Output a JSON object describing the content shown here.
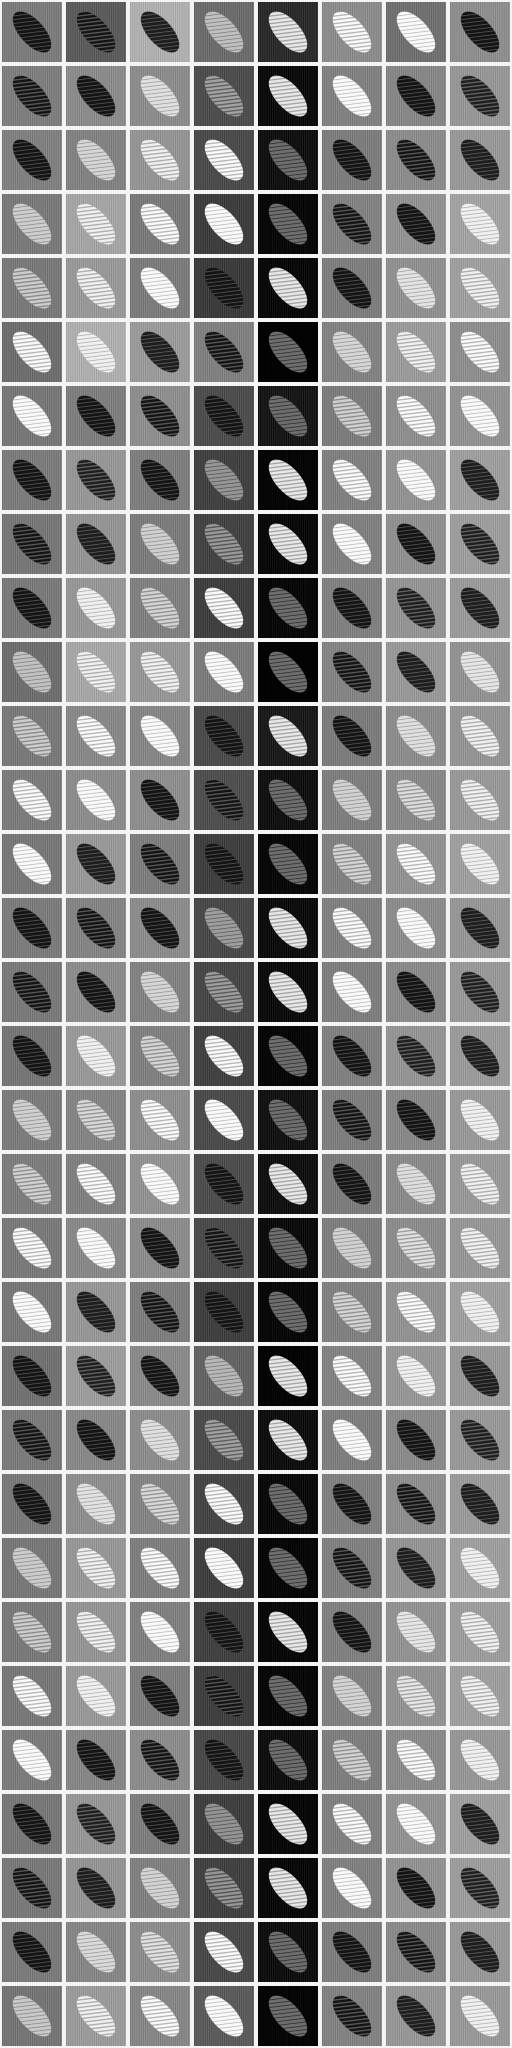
{
  "figure": {
    "columns": 8,
    "rows": 32,
    "tile_shape": "diagonal-ellipse",
    "tones": [
      [
        "#8a8a8a",
        "#6a6a6a",
        "#bdbdbd",
        "#7a7a7a",
        "#3a3a3a",
        "#9a9a9a",
        "#7e7e7e",
        "#9c9c9c"
      ],
      [
        "#8c8c8c",
        "#999999",
        "#9a9a9a",
        "#5c5c5c",
        "#1a1a1a",
        "#8f8f8f",
        "#959595",
        "#a4a4a4"
      ],
      [
        "#8e8e8e",
        "#909090",
        "#a2a2a2",
        "#5a5a5a",
        "#202020",
        "#8b8b8b",
        "#9a9a9a",
        "#a6a6a6"
      ],
      [
        "#888888",
        "#b2b2b2",
        "#888888",
        "#4c4c4c",
        "#121212",
        "#909090",
        "#a0a0a0",
        "#b0b0b0"
      ],
      [
        "#878787",
        "#a6a6a6",
        "#8a8a8a",
        "#4a4a4a",
        "#141414",
        "#8c8c8c",
        "#9e9e9e",
        "#acacac"
      ],
      [
        "#7c7c7c",
        "#bcbcbc",
        "#a8a8a8",
        "#8e8e8e",
        "#050505",
        "#909090",
        "#a8a8a8",
        "#9c9c9c"
      ],
      [
        "#858585",
        "#8c8c8c",
        "#9c9c9c",
        "#5c5c5c",
        "#262626",
        "#8a8a8a",
        "#9c9c9c",
        "#a0a0a0"
      ],
      [
        "#8a8a8a",
        "#a4a4a4",
        "#8c8c8c",
        "#505050",
        "#0c0c0c",
        "#8e8e8e",
        "#a0a0a0",
        "#acacac"
      ],
      [
        "#858585",
        "#a2a2a2",
        "#8a8a8a",
        "#525252",
        "#141414",
        "#8e8e8e",
        "#9e9e9e",
        "#ababab"
      ],
      [
        "#888888",
        "#a4a4a4",
        "#8e8e8e",
        "#4e4e4e",
        "#121212",
        "#8e8e8e",
        "#a2a2a2",
        "#a8a8a8"
      ],
      [
        "#7c7c7c",
        "#b4b4b4",
        "#a4a4a4",
        "#8a8a8a",
        "#050505",
        "#929292",
        "#a6a6a6",
        "#a0a0a0"
      ],
      [
        "#878787",
        "#969696",
        "#949494",
        "#5a5a5a",
        "#2a2a2a",
        "#8a8a8a",
        "#9a9a9a",
        "#a2a2a2"
      ],
      [
        "#8a8a8a",
        "#9a9a9a",
        "#9c9c9c",
        "#5e5e5e",
        "#202020",
        "#8c8c8c",
        "#969696",
        "#a6a6a6"
      ],
      [
        "#868686",
        "#a6a6a6",
        "#8c8c8c",
        "#4e4e4e",
        "#121212",
        "#8e8e8e",
        "#a0a0a0",
        "#acacac"
      ],
      [
        "#8a8a8a",
        "#929292",
        "#9a9a9a",
        "#585858",
        "#1c1c1c",
        "#8e8e8e",
        "#9a9a9a",
        "#a4a4a4"
      ],
      [
        "#888888",
        "#9a9a9a",
        "#909090",
        "#565656",
        "#1a1a1a",
        "#8c8c8c",
        "#989898",
        "#a6a6a6"
      ],
      [
        "#848484",
        "#a6a6a6",
        "#8e8e8e",
        "#505050",
        "#101010",
        "#8e8e8e",
        "#a2a2a2",
        "#a8a8a8"
      ],
      [
        "#8a8a8a",
        "#929292",
        "#9c9c9c",
        "#5a5a5a",
        "#222222",
        "#8c8c8c",
        "#969696",
        "#a6a6a6"
      ],
      [
        "#8b8b8b",
        "#8e8e8e",
        "#a0a0a0",
        "#5c5c5c",
        "#202020",
        "#8a8a8a",
        "#989898",
        "#a6a6a6"
      ],
      [
        "#888888",
        "#969696",
        "#9a9a9a",
        "#5a5a5a",
        "#1a1a1a",
        "#8c8c8c",
        "#9a9a9a",
        "#a4a4a4"
      ],
      [
        "#868686",
        "#a4a4a4",
        "#8c8c8c",
        "#4e4e4e",
        "#121212",
        "#8e8e8e",
        "#a0a0a0",
        "#acacac"
      ],
      [
        "#808080",
        "#aaaaaa",
        "#989898",
        "#727272",
        "#0a0a0a",
        "#909090",
        "#a4a4a4",
        "#a6a6a6"
      ],
      [
        "#898989",
        "#969696",
        "#9a9a9a",
        "#5a5a5a",
        "#1e1e1e",
        "#8c8c8c",
        "#989898",
        "#a6a6a6"
      ],
      [
        "#878787",
        "#9c9c9c",
        "#929292",
        "#545454",
        "#161616",
        "#8e8e8e",
        "#9c9c9c",
        "#a8a8a8"
      ],
      [
        "#868686",
        "#a4a4a4",
        "#8c8c8c",
        "#4e4e4e",
        "#101010",
        "#8e8e8e",
        "#a2a2a2",
        "#acacac"
      ],
      [
        "#878787",
        "#a2a2a2",
        "#8e8e8e",
        "#505050",
        "#121212",
        "#8e8e8e",
        "#a0a0a0",
        "#aaaaaa"
      ],
      [
        "#868686",
        "#a6a6a6",
        "#8c8c8c",
        "#4e4e4e",
        "#121212",
        "#8e8e8e",
        "#a0a0a0",
        "#acacac"
      ],
      [
        "#8a8a8a",
        "#949494",
        "#9a9a9a",
        "#585858",
        "#1e1e1e",
        "#8c8c8c",
        "#989898",
        "#a4a4a4"
      ],
      [
        "#868686",
        "#a4a4a4",
        "#8c8c8c",
        "#4e4e4e",
        "#121212",
        "#8e8e8e",
        "#a0a0a0",
        "#acacac"
      ],
      [
        "#878787",
        "#a2a2a2",
        "#8e8e8e",
        "#505050",
        "#141414",
        "#8e8e8e",
        "#a0a0a0",
        "#aaaaaa"
      ],
      [
        "#898989",
        "#949494",
        "#9a9a9a",
        "#585858",
        "#1e1e1e",
        "#8c8c8c",
        "#989898",
        "#a6a6a6"
      ],
      [
        "#838383",
        "#a8a8a8",
        "#949494",
        "#6a6a6a",
        "#0c0c0c",
        "#909090",
        "#a4a4a4",
        "#a6a6a6"
      ]
    ]
  }
}
